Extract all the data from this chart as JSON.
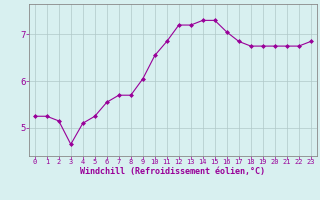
{
  "x": [
    0,
    1,
    2,
    3,
    4,
    5,
    6,
    7,
    8,
    9,
    10,
    11,
    12,
    13,
    14,
    15,
    16,
    17,
    18,
    19,
    20,
    21,
    22,
    23
  ],
  "y": [
    5.25,
    5.25,
    5.15,
    4.65,
    5.1,
    5.25,
    5.55,
    5.7,
    5.7,
    6.05,
    6.55,
    6.85,
    7.2,
    7.2,
    7.3,
    7.3,
    7.05,
    6.85,
    6.75,
    6.75,
    6.75,
    6.75,
    6.75,
    6.85
  ],
  "line_color": "#990099",
  "marker": "D",
  "marker_size": 2.0,
  "bg_color": "#d8f0f0",
  "grid_color": "#b0c8c8",
  "xlabel": "Windchill (Refroidissement éolien,°C)",
  "xlabel_color": "#990099",
  "tick_color": "#990099",
  "ylim_min": 4.4,
  "ylim_max": 7.65,
  "yticks": [
    5,
    6,
    7
  ],
  "xticks": [
    0,
    1,
    2,
    3,
    4,
    5,
    6,
    7,
    8,
    9,
    10,
    11,
    12,
    13,
    14,
    15,
    16,
    17,
    18,
    19,
    20,
    21,
    22,
    23
  ],
  "spine_color": "#888888",
  "tick_fontsize": 5.0,
  "ytick_fontsize": 6.5,
  "xlabel_fontsize": 6.0
}
